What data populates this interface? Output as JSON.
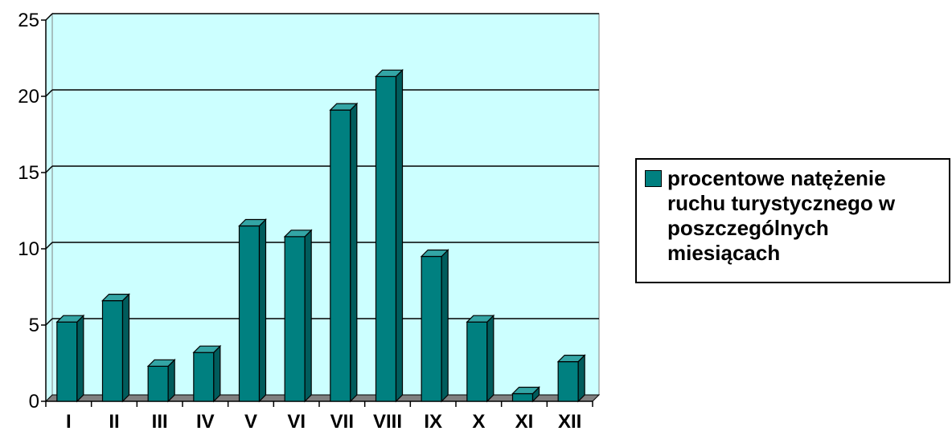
{
  "chart_data": {
    "type": "bar",
    "categories": [
      "I",
      "II",
      "III",
      "IV",
      "V",
      "VI",
      "VII",
      "VIII",
      "IX",
      "X",
      "XI",
      "XII"
    ],
    "series": [
      {
        "name": "procentowe natężenie ruchu turystycznego w poszczególnych miesiącach",
        "values": [
          5.2,
          6.6,
          2.3,
          3.2,
          11.5,
          10.8,
          19.1,
          21.3,
          9.5,
          5.2,
          0.5,
          2.6
        ]
      }
    ],
    "yticks": [
      "0",
      "5",
      "10",
      "15",
      "20",
      "25"
    ],
    "ylim": [
      0,
      25
    ],
    "grid": true,
    "legend_position": "right",
    "colors": {
      "bar_front": "#008080",
      "bar_side": "#005c5c",
      "bar_top": "#33a5a5",
      "plot_background": "#ccffff",
      "floor": "#808080"
    }
  }
}
